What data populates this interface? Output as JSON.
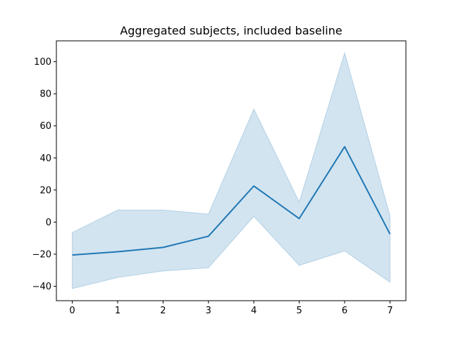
{
  "chart_data": {
    "type": "line",
    "title": "Aggregated subjects, included baseline",
    "xlabel": "",
    "ylabel": "",
    "x": [
      0,
      1,
      2,
      3,
      4,
      5,
      6,
      7
    ],
    "series": [
      {
        "values": [
          -20.5,
          -18.5,
          -15.8,
          -8.8,
          22.5,
          2.2,
          47.0,
          -7.5
        ],
        "band_upper": [
          -6.5,
          7.5,
          7.5,
          5.0,
          70.5,
          12.5,
          105.5,
          4.0
        ],
        "band_lower": [
          -41.5,
          -34.5,
          -30.5,
          -28.5,
          3.5,
          -27.0,
          -18.0,
          -37.5
        ],
        "color": "#1f77b4",
        "band_color": "#1f77b4"
      }
    ],
    "xlim": [
      -0.35,
      7.35
    ],
    "ylim": [
      -49,
      113
    ],
    "xticks": [
      "0",
      "1",
      "2",
      "3",
      "4",
      "5",
      "6",
      "7"
    ],
    "yticks": [
      "−40",
      "−20",
      "0",
      "20",
      "40",
      "60",
      "80",
      "100"
    ],
    "grid": false,
    "legend": "none"
  }
}
